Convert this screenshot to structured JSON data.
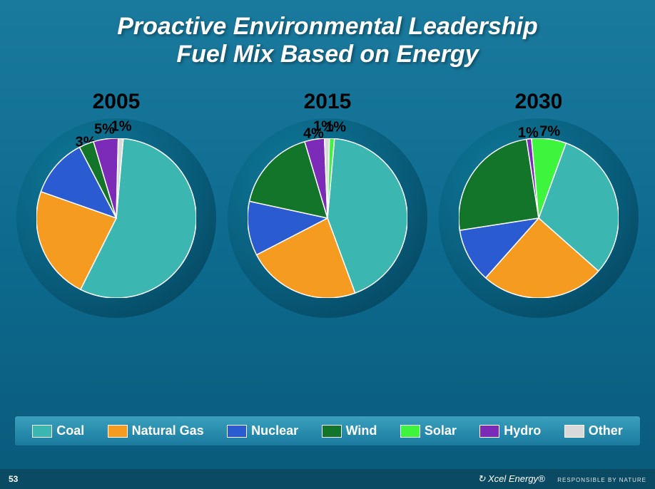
{
  "title_line1": "Proactive Environmental Leadership",
  "title_line2": "Fuel Mix Based on Energy",
  "background_gradient": [
    "#1a7a9e",
    "#0d6b8f",
    "#0a5a7a"
  ],
  "pie_inner_radius": 0,
  "pie_outer_radius": 112,
  "pie_canvas": 224,
  "pie_stroke": "#ffffff",
  "pie_stroke_width": 1.5,
  "pie_bg_radius": 280,
  "pie_bg_gradient": [
    "#0f7a9a",
    "#085a78",
    "#043c52"
  ],
  "categories": [
    {
      "key": "coal",
      "label": "Coal",
      "color": "#3bb6b0"
    },
    {
      "key": "natgas",
      "label": "Natural Gas",
      "color": "#f59b1f"
    },
    {
      "key": "nuclear",
      "label": "Nuclear",
      "color": "#2a5bd0"
    },
    {
      "key": "wind",
      "label": "Wind",
      "color": "#13752a"
    },
    {
      "key": "solar",
      "label": "Solar",
      "color": "#3df53d"
    },
    {
      "key": "hydro",
      "label": "Hydro",
      "color": "#7c2bb8"
    },
    {
      "key": "other",
      "label": "Other",
      "color": "#d9d9d9"
    }
  ],
  "charts": [
    {
      "year": "2005",
      "slices": [
        {
          "key": "coal",
          "value": 56,
          "label": "56%",
          "label_r": 60,
          "label_offset_deg": 0
        },
        {
          "key": "natgas",
          "value": 23,
          "label": "23%",
          "label_r": 70,
          "label_offset_deg": 0
        },
        {
          "key": "nuclear",
          "value": 12,
          "label": "12%",
          "label_r": 65,
          "label_offset_deg": 0
        },
        {
          "key": "wind",
          "value": 3,
          "label": "3%",
          "label_r": 115,
          "label_offset_deg": 0
        },
        {
          "key": "hydro",
          "value": 5,
          "label": "5%",
          "label_r": 125,
          "label_offset_deg": 0
        },
        {
          "key": "other",
          "value": 1,
          "label": "1%",
          "label_r": 128,
          "label_offset_deg": 0
        }
      ],
      "start_angle_deg": -85
    },
    {
      "year": "2015",
      "slices": [
        {
          "key": "coal",
          "value": 43,
          "label": "43%",
          "label_r": 60,
          "label_offset_deg": 0
        },
        {
          "key": "natgas",
          "value": 23,
          "label": "23%",
          "label_r": 65,
          "label_offset_deg": 0
        },
        {
          "key": "nuclear",
          "value": 11,
          "label": "11%",
          "label_r": 65,
          "label_offset_deg": 0
        },
        {
          "key": "wind",
          "value": 17,
          "label": "17%",
          "label_r": 65,
          "label_offset_deg": 0
        },
        {
          "key": "hydro",
          "value": 4,
          "label": "4%",
          "label_r": 120,
          "label_offset_deg": 0
        },
        {
          "key": "other",
          "value": 1,
          "label": "1%",
          "label_r": 128,
          "label_offset_deg": -2
        },
        {
          "key": "solar",
          "value": 1,
          "label": "1%",
          "label_r": 128,
          "label_offset_deg": 2
        }
      ],
      "start_angle_deg": -85
    },
    {
      "year": "2030",
      "slices": [
        {
          "key": "coal",
          "value": 31,
          "label": "31%",
          "label_r": 62,
          "label_offset_deg": 0
        },
        {
          "key": "natgas",
          "value": 25,
          "label": "25%",
          "label_r": 62,
          "label_offset_deg": 0
        },
        {
          "key": "nuclear",
          "value": 11,
          "label": "11%",
          "label_r": 62,
          "label_offset_deg": 0
        },
        {
          "key": "wind",
          "value": 25,
          "label": "25%",
          "label_r": 62,
          "label_offset_deg": 0
        },
        {
          "key": "hydro",
          "value": 1,
          "label": "1%",
          "label_r": 120,
          "label_offset_deg": 0
        },
        {
          "key": "solar",
          "value": 7,
          "label": "7%",
          "label_r": 122,
          "label_offset_deg": 0
        }
      ],
      "start_angle_deg": -70
    }
  ],
  "legend_bg_gradient": [
    "#3aa0bd",
    "#1a7a9e"
  ],
  "legend_font_size": 18,
  "year_font_size": 30,
  "slice_label_font_size": 20,
  "footer": {
    "page": "53",
    "brand": "Xcel Energy",
    "tagline": "RESPONSIBLE BY NATURE"
  }
}
